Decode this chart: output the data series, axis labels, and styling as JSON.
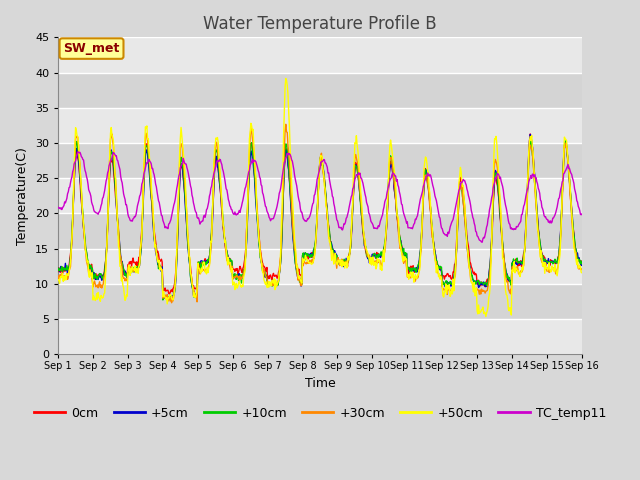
{
  "title": "Water Temperature Profile B",
  "xlabel": "Time",
  "ylabel": "Temperature(C)",
  "ylim": [
    0,
    45
  ],
  "yticks": [
    0,
    5,
    10,
    15,
    20,
    25,
    30,
    35,
    40,
    45
  ],
  "xlim_days": 15,
  "x_tick_labels": [
    "Sep 1",
    "Sep 2",
    "Sep 3",
    "Sep 4",
    "Sep 5",
    "Sep 6",
    "Sep 7",
    "Sep 8",
    "Sep 9",
    "Sep 10",
    "Sep 11",
    "Sep 12",
    "Sep 13",
    "Sep 14",
    "Sep 15",
    "Sep 16"
  ],
  "series_colors": {
    "0cm": "#ff0000",
    "+5cm": "#0000cc",
    "+10cm": "#00cc00",
    "+30cm": "#ff8800",
    "+50cm": "#ffff00",
    "TC_temp11": "#cc00cc"
  },
  "series_linewidth": 1.0,
  "annotation_text": "SW_met",
  "bg_color": "#d8d8d8",
  "plot_bg_light": "#e8e8e8",
  "plot_bg_dark": "#d0d0d0",
  "title_fontsize": 12,
  "axis_label_fontsize": 9,
  "tick_fontsize": 8,
  "legend_fontsize": 9,
  "grid_color": "#ffffff",
  "grid_linewidth": 1.0,
  "band_colors": [
    "#e8e8e8",
    "#d4d4d4"
  ]
}
